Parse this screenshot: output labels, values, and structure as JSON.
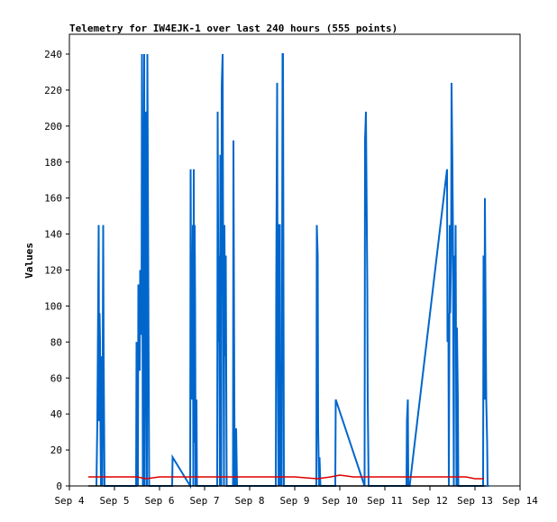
{
  "chart_data": {
    "type": "line",
    "title": "Telemetry for IW4EJK-1 over last 240 hours (555 points)",
    "xlabel": "",
    "ylabel": "Values",
    "x_unit": "days (Sep)",
    "xlim": [
      4.0,
      14.0
    ],
    "ylim": [
      0,
      255
    ],
    "x_ticks": [
      4,
      5,
      6,
      7,
      8,
      9,
      10,
      11,
      12,
      13,
      14
    ],
    "x_tick_labels": [
      "Sep 4",
      "Sep 5",
      "Sep 6",
      "Sep 7",
      "Sep 8",
      "Sep 9",
      "Sep 10",
      "Sep 11",
      "Sep 12",
      "Sep 13",
      "Sep 14"
    ],
    "y_ticks": [
      0,
      20,
      40,
      60,
      80,
      100,
      120,
      140,
      160,
      180,
      200,
      220,
      240
    ],
    "grid": false,
    "legend": "none",
    "series": [
      {
        "color": "#0066cc",
        "x": [
          4.6,
          4.62,
          4.64,
          4.65,
          4.66,
          4.67,
          4.68,
          4.69,
          4.7,
          4.71,
          4.73,
          4.75,
          4.76,
          4.78,
          4.79,
          5.48,
          5.49,
          5.52,
          5.53,
          5.56,
          5.57,
          5.6,
          5.61,
          5.63,
          5.64,
          5.66,
          5.67,
          5.7,
          5.71,
          5.72,
          5.73,
          5.77,
          5.78,
          6.28,
          6.29,
          6.68,
          6.69,
          6.71,
          6.72,
          6.73,
          6.74,
          6.75,
          6.76,
          6.77,
          6.78,
          6.79,
          6.8,
          6.82,
          6.83,
          6.85,
          6.86,
          6.88,
          6.89,
          7.28,
          7.29,
          7.31,
          7.32,
          7.34,
          7.35,
          7.37,
          7.38,
          7.4,
          7.41,
          7.43,
          7.44,
          7.46,
          7.47,
          7.49,
          7.5,
          7.53,
          7.54,
          7.56,
          7.57,
          7.63,
          7.64,
          7.66,
          7.67,
          7.69,
          7.7,
          7.72,
          7.73,
          7.75,
          7.76,
          8.58,
          8.59,
          8.61,
          8.62,
          8.64,
          8.65,
          8.67,
          8.68,
          8.7,
          8.71,
          8.73,
          8.74,
          8.76,
          8.77,
          8.8,
          8.81,
          9.48,
          9.49,
          9.51,
          9.52,
          9.54,
          9.55,
          9.57,
          9.58,
          9.63,
          9.64,
          9.9,
          9.91,
          10.55,
          10.56,
          10.58,
          10.59,
          10.61,
          10.62,
          10.64,
          10.65,
          11.48,
          11.49,
          11.51,
          11.52,
          11.54,
          11.55,
          12.38,
          12.39,
          12.41,
          12.42,
          12.44,
          12.45,
          12.47,
          12.48,
          12.5,
          12.51,
          12.53,
          12.54,
          12.56,
          12.57,
          12.59,
          12.6,
          12.62,
          12.63,
          12.65,
          12.66,
          12.68,
          12.69,
          12.71,
          12.72,
          12.74,
          12.75,
          13.18,
          13.19,
          13.21,
          13.22,
          13.24,
          13.25,
          13.27,
          13.28,
          13.3,
          13.31
        ],
        "y": [
          0,
          36,
          108,
          145,
          36,
          96,
          80,
          30,
          0,
          72,
          0,
          145,
          72,
          0,
          0,
          0,
          80,
          0,
          112,
          64,
          120,
          84,
          240,
          0,
          120,
          240,
          0,
          208,
          104,
          0,
          240,
          0,
          0,
          0,
          16,
          0,
          176,
          48,
          128,
          80,
          145,
          0,
          176,
          24,
          145,
          100,
          0,
          48,
          0,
          0,
          0,
          0,
          0,
          0,
          208,
          80,
          128,
          0,
          184,
          0,
          222,
          240,
          145,
          0,
          145,
          72,
          128,
          0,
          0,
          0,
          0,
          0,
          0,
          0,
          192,
          48,
          0,
          0,
          32,
          0,
          0,
          0,
          0,
          0,
          112,
          224,
          96,
          0,
          145,
          145,
          0,
          16,
          0,
          240,
          240,
          0,
          0,
          0,
          0,
          0,
          145,
          128,
          32,
          0,
          16,
          0,
          0,
          0,
          0,
          0,
          48,
          0,
          192,
          208,
          176,
          112,
          48,
          0,
          0,
          0,
          36,
          48,
          0,
          0,
          0,
          176,
          80,
          96,
          0,
          145,
          96,
          128,
          224,
          176,
          145,
          0,
          128,
          96,
          145,
          0,
          88,
          48,
          0,
          0,
          0,
          0,
          0,
          0,
          0,
          0,
          0,
          0,
          128,
          48,
          160,
          80,
          48,
          24,
          0,
          0,
          0
        ]
      },
      {
        "color": "#dd0000",
        "x": [
          4.42,
          5.0,
          5.5,
          5.7,
          6.0,
          7.0,
          8.0,
          8.5,
          9.0,
          9.5,
          9.8,
          10.0,
          10.3,
          11.0,
          12.0,
          12.6,
          12.8,
          13.0,
          13.2
        ],
        "y": [
          5,
          5,
          5,
          4,
          5,
          5,
          5,
          5,
          5,
          4,
          5,
          6,
          5,
          5,
          5,
          5,
          5,
          4,
          4
        ]
      },
      {
        "color": "#000000",
        "x": [
          4.42,
          13.25
        ],
        "y": [
          0,
          0
        ]
      }
    ]
  }
}
